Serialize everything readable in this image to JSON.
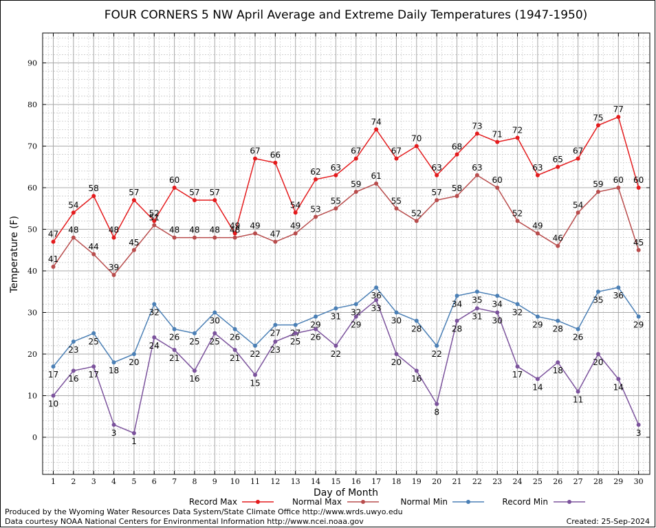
{
  "chart_data": {
    "type": "line",
    "title": "FOUR CORNERS 5 NW April Average and Extreme Daily Temperatures (1947-1950)",
    "xlabel": "Day of Month",
    "ylabel": "Temperature (F)",
    "x": [
      1,
      2,
      3,
      4,
      5,
      6,
      7,
      8,
      9,
      10,
      11,
      12,
      13,
      14,
      15,
      16,
      17,
      18,
      19,
      20,
      21,
      22,
      23,
      24,
      25,
      26,
      27,
      28,
      29,
      30
    ],
    "ylim": [
      -10,
      97
    ],
    "yticks": [
      0,
      10,
      20,
      30,
      40,
      50,
      60,
      70,
      80,
      90
    ],
    "grid": true,
    "legend_position": "bottom",
    "series": [
      {
        "name": "Record Max",
        "color": "#e41a1c",
        "values": [
          47,
          54,
          58,
          48,
          57,
          52,
          60,
          57,
          57,
          49,
          67,
          66,
          54,
          62,
          63,
          67,
          74,
          67,
          70,
          63,
          68,
          73,
          71,
          72,
          63,
          65,
          67,
          75,
          77,
          60
        ]
      },
      {
        "name": "Normal Max",
        "color": "#b84c4c",
        "values": [
          41,
          48,
          44,
          39,
          45,
          51,
          48,
          48,
          48,
          48,
          49,
          47,
          49,
          53,
          55,
          59,
          61,
          55,
          52,
          57,
          58,
          63,
          60,
          52,
          49,
          46,
          54,
          59,
          60,
          45
        ]
      },
      {
        "name": "Normal Min",
        "color": "#4a7fb5",
        "values": [
          17,
          23,
          25,
          18,
          20,
          32,
          26,
          25,
          30,
          26,
          22,
          27,
          27,
          29,
          31,
          32,
          36,
          30,
          28,
          22,
          34,
          35,
          34,
          32,
          29,
          28,
          26,
          35,
          36,
          29
        ]
      },
      {
        "name": "Record Min",
        "color": "#7b529c",
        "values": [
          10,
          16,
          17,
          3,
          1,
          24,
          21,
          16,
          25,
          21,
          15,
          23,
          25,
          26,
          22,
          29,
          33,
          20,
          16,
          8,
          28,
          31,
          30,
          17,
          14,
          18,
          11,
          20,
          14,
          3
        ]
      }
    ]
  },
  "footer": {
    "line1": "Produced by the Wyoming Water Resources Data System/State Climate Office http://www.wrds.uwyo.edu",
    "line2": "Data courtesy NOAA National Centers for Environmental Information http://www.ncei.noaa.gov",
    "created": "Created:  25-Sep-2024"
  }
}
